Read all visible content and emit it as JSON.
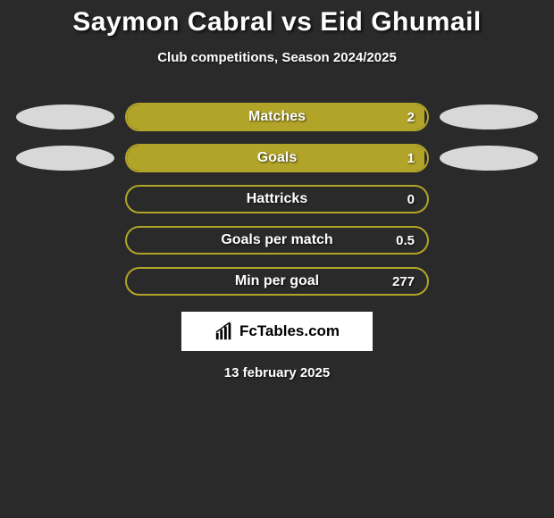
{
  "title": "Saymon Cabral vs Eid Ghumail",
  "subtitle": "Club competitions, Season 2024/2025",
  "date": "13 february 2025",
  "branding": "FcTables.com",
  "colors": {
    "background": "#2a2a2a",
    "accent": "#b2a429",
    "ellipse_left": "#d8d8d8",
    "ellipse_right": "#d8d8d8",
    "text": "#ffffff",
    "brand_bg": "#ffffff"
  },
  "stats": [
    {
      "label": "Matches",
      "value": "2",
      "fill_pct": 99,
      "left_ellipse": true,
      "right_ellipse": true
    },
    {
      "label": "Goals",
      "value": "1",
      "fill_pct": 99,
      "left_ellipse": true,
      "right_ellipse": true
    },
    {
      "label": "Hattricks",
      "value": "0",
      "fill_pct": 0,
      "left_ellipse": false,
      "right_ellipse": false
    },
    {
      "label": "Goals per match",
      "value": "0.5",
      "fill_pct": 0,
      "left_ellipse": false,
      "right_ellipse": false
    },
    {
      "label": "Min per goal",
      "value": "277",
      "fill_pct": 0,
      "left_ellipse": false,
      "right_ellipse": false
    }
  ]
}
